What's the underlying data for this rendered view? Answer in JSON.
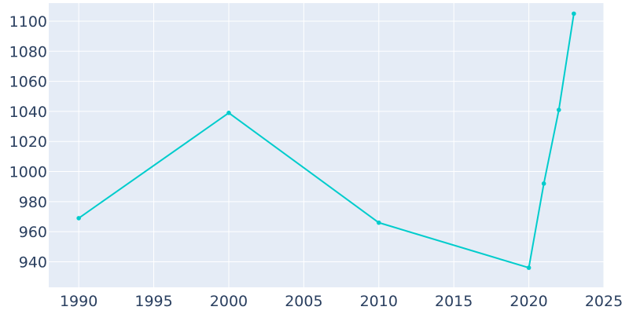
{
  "chart_data": {
    "type": "line",
    "title": "",
    "xlabel": "",
    "ylabel": "",
    "x": [
      1990,
      2000,
      2010,
      2020,
      2021,
      2022,
      2023
    ],
    "series": [
      {
        "values": [
          969,
          1039,
          966,
          936,
          992,
          1041,
          1105
        ]
      }
    ],
    "xlim": [
      1988,
      2025
    ],
    "ylim": [
      923,
      1112
    ],
    "xticks": [
      1990,
      1995,
      2000,
      2005,
      2010,
      2015,
      2020,
      2025
    ],
    "yticks": [
      940,
      960,
      980,
      1000,
      1020,
      1040,
      1060,
      1080,
      1100
    ],
    "grid": true,
    "legend": "none",
    "colors": {
      "plot_bg": "#e5ecf6",
      "line": "#00cccc",
      "tick_text": "#2a3f5f"
    }
  }
}
